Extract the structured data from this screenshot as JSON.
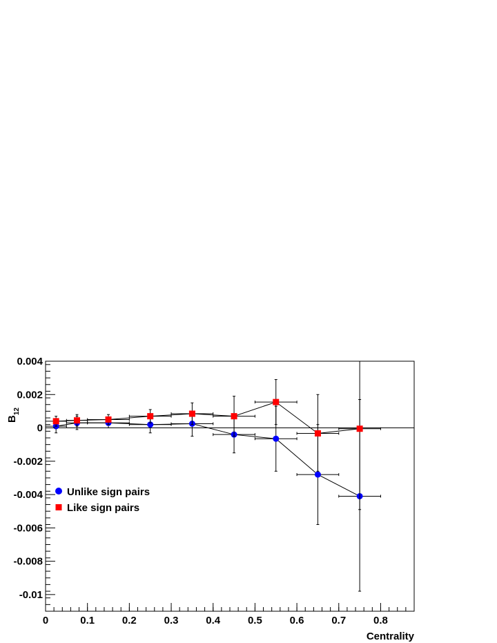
{
  "chart_data": {
    "type": "scatter",
    "xlabel": "Centrality",
    "ylabel": "B",
    "ylabel_sub": "12",
    "xlim": [
      0,
      0.88
    ],
    "ylim": [
      -0.011,
      0.004
    ],
    "x_ticks": [
      0,
      0.1,
      0.2,
      0.3,
      0.4,
      0.5,
      0.6,
      0.7,
      0.8
    ],
    "x_tick_labels": [
      "0",
      "0.1",
      "0.2",
      "0.3",
      "0.4",
      "0.5",
      "0.6",
      "0.7",
      "0.8"
    ],
    "y_ticks": [
      -0.01,
      -0.008,
      -0.006,
      -0.004,
      -0.002,
      0,
      0.002,
      0.004
    ],
    "y_tick_labels": [
      "-0.01",
      "-0.008",
      "-0.006",
      "-0.004",
      "-0.002",
      "0",
      "0.002",
      "0.004"
    ],
    "zero_line": true,
    "legend_position": "left",
    "series": [
      {
        "name": "Unlike sign pairs",
        "marker": "circle",
        "color": "#0000ff",
        "connect_lines": true,
        "points": [
          {
            "x": 0.025,
            "y": 0.0001,
            "xerr": 0.025,
            "ylo": -0.0003,
            "yhi": 0.0005
          },
          {
            "x": 0.075,
            "y": 0.0003,
            "xerr": 0.025,
            "ylo": -0.0001,
            "yhi": 0.0007
          },
          {
            "x": 0.15,
            "y": 0.0003,
            "xerr": 0.05,
            "ylo": 0.0,
            "yhi": 0.0006
          },
          {
            "x": 0.25,
            "y": 0.0002,
            "xerr": 0.05,
            "ylo": -0.0003,
            "yhi": 0.0007
          },
          {
            "x": 0.35,
            "y": 0.00025,
            "xerr": 0.05,
            "ylo": -0.0005,
            "yhi": 0.001
          },
          {
            "x": 0.45,
            "y": -0.0004,
            "xerr": 0.05,
            "ylo": -0.0015,
            "yhi": 0.0007
          },
          {
            "x": 0.55,
            "y": -0.00065,
            "xerr": 0.05,
            "ylo": -0.0026,
            "yhi": 0.0013
          },
          {
            "x": 0.65,
            "y": -0.0028,
            "xerr": 0.05,
            "ylo": -0.0058,
            "yhi": 0.0002
          },
          {
            "x": 0.75,
            "y": -0.0041,
            "xerr": 0.05,
            "ylo": -0.0098,
            "yhi": 0.0017
          }
        ]
      },
      {
        "name": "Like sign pairs",
        "marker": "square",
        "color": "#ff0000",
        "connect_lines": true,
        "points": [
          {
            "x": 0.025,
            "y": 0.0004,
            "xerr": 0.025,
            "ylo": 0.0001,
            "yhi": 0.0007
          },
          {
            "x": 0.075,
            "y": 0.00045,
            "xerr": 0.025,
            "ylo": 0.0001,
            "yhi": 0.0008
          },
          {
            "x": 0.15,
            "y": 0.0005,
            "xerr": 0.05,
            "ylo": 0.0002,
            "yhi": 0.0008
          },
          {
            "x": 0.25,
            "y": 0.0007,
            "xerr": 0.05,
            "ylo": 0.0003,
            "yhi": 0.0011
          },
          {
            "x": 0.35,
            "y": 0.00085,
            "xerr": 0.05,
            "ylo": 0.0002,
            "yhi": 0.0015
          },
          {
            "x": 0.45,
            "y": 0.0007,
            "xerr": 0.05,
            "ylo": -0.0005,
            "yhi": 0.0019
          },
          {
            "x": 0.55,
            "y": 0.00155,
            "xerr": 0.05,
            "ylo": 0.0002,
            "yhi": 0.0029
          },
          {
            "x": 0.65,
            "y": -0.00033,
            "xerr": 0.05,
            "ylo": -0.0026,
            "yhi": 0.002
          },
          {
            "x": 0.75,
            "y": -5e-05,
            "xerr": 0.05,
            "ylo": -0.0049,
            "yhi": 0.004
          }
        ]
      }
    ]
  }
}
